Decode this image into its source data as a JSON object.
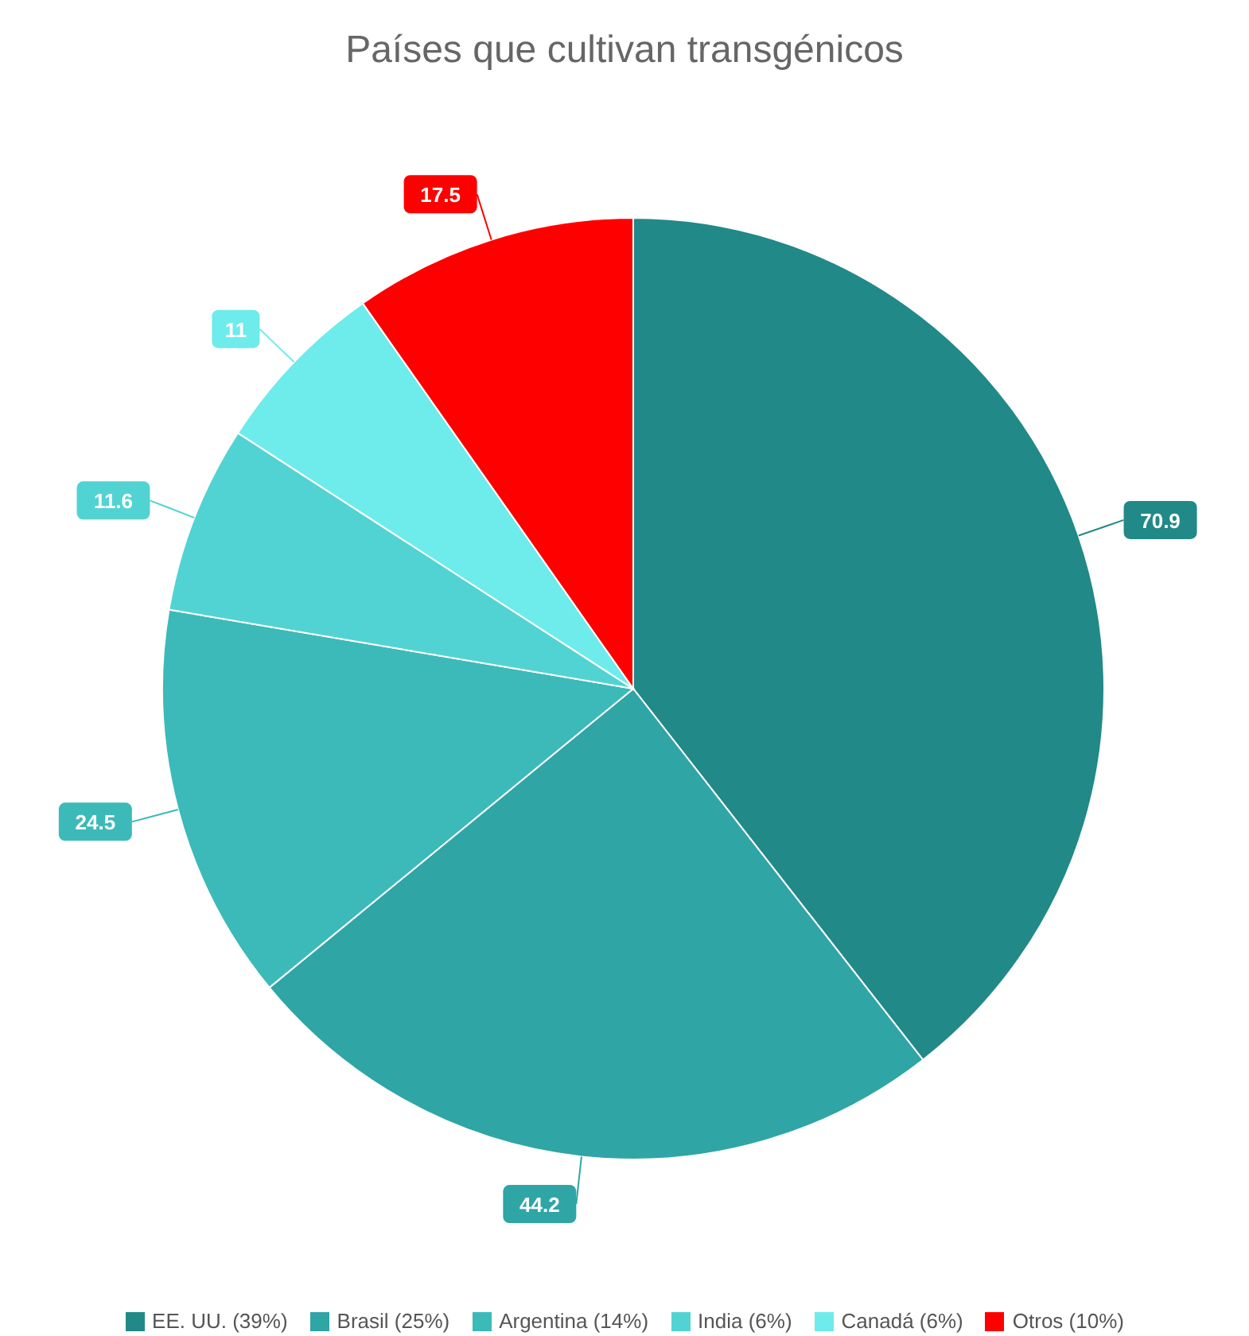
{
  "chart_data": {
    "type": "pie",
    "title": "Países que cultivan transgénicos",
    "categories": [
      "EE. UU. (39%)",
      "Brasil (25%)",
      "Argentina (14%)",
      "India (6%)",
      "Canadá (6%)",
      "Otros (10%)"
    ],
    "values": [
      70.9,
      44.2,
      24.5,
      11.6,
      11,
      17.5
    ],
    "colors": [
      "#218987",
      "#2fa5a6",
      "#3bbab9",
      "#52d3d3",
      "#6eebeb",
      "#ff0000"
    ],
    "data_labels": true,
    "legend": "bottom"
  }
}
